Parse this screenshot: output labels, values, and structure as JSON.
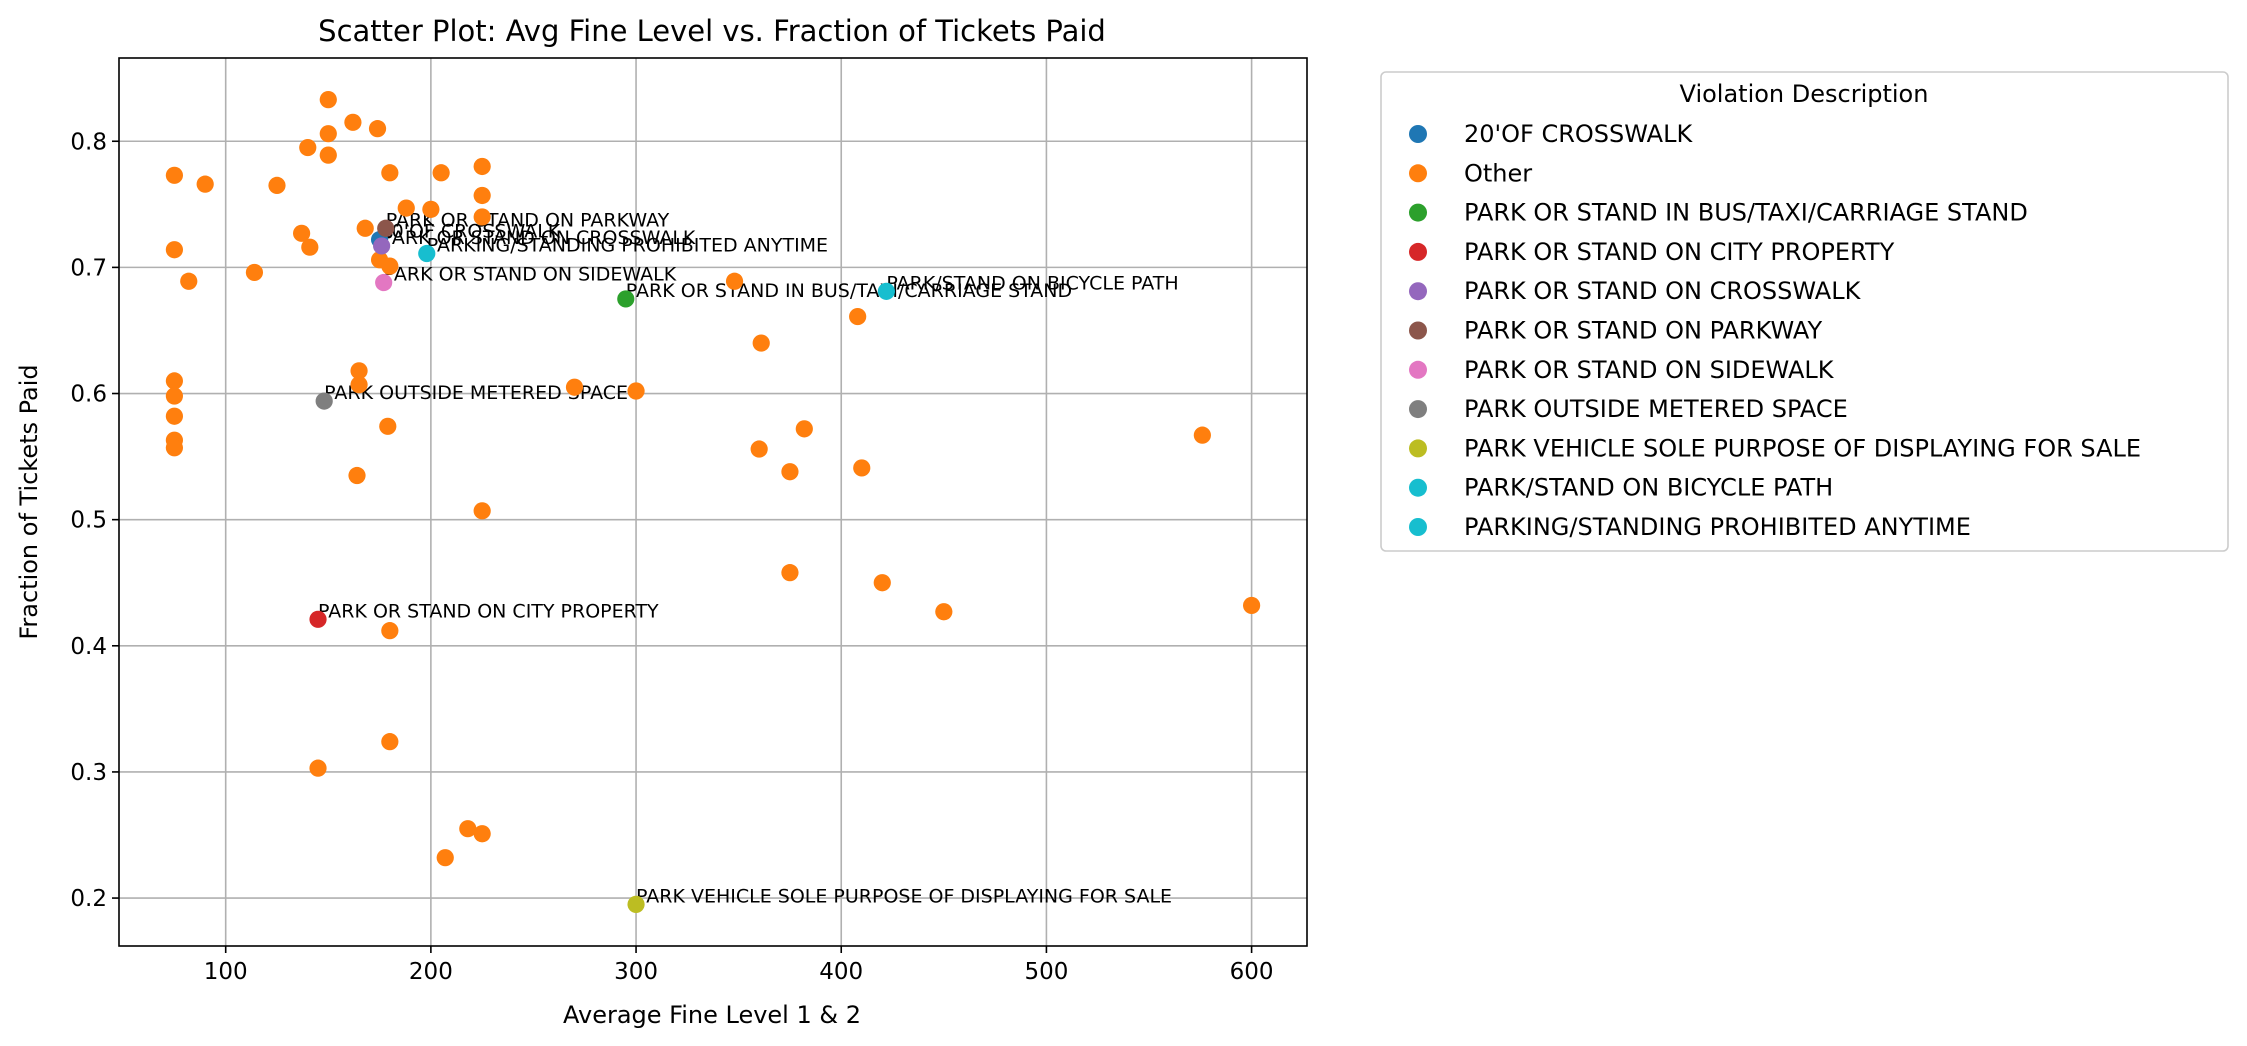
{
  "chart_data": {
    "type": "scatter",
    "title": "Scatter Plot: Avg Fine Level vs. Fraction of Tickets Paid",
    "xlabel": "Average Fine Level 1 & 2",
    "ylabel": "Fraction of Tickets Paid",
    "xlim": [
      48,
      627
    ],
    "ylim": [
      0.162,
      0.866
    ],
    "xticks": [
      100,
      200,
      300,
      400,
      500,
      600
    ],
    "yticks": [
      0.2,
      0.3,
      0.4,
      0.5,
      0.6,
      0.7,
      0.8
    ],
    "xtick_labels": [
      "100",
      "200",
      "300",
      "400",
      "500",
      "600"
    ],
    "ytick_labels": [
      "0.2",
      "0.3",
      "0.4",
      "0.5",
      "0.6",
      "0.7",
      "0.8"
    ],
    "grid": true,
    "legend": {
      "title": "Violation Description",
      "placement": "outside-right"
    },
    "series": [
      {
        "name": "20'OF CROSSWALK",
        "color": "#1f77b4",
        "points": [
          {
            "x": 175,
            "y": 0.722,
            "label": "20'OF CROSSWALK"
          }
        ]
      },
      {
        "name": "Other",
        "color": "#ff7f0e",
        "points": [
          {
            "x": 150,
            "y": 0.833
          },
          {
            "x": 162,
            "y": 0.815
          },
          {
            "x": 174,
            "y": 0.81
          },
          {
            "x": 150,
            "y": 0.806
          },
          {
            "x": 140,
            "y": 0.795
          },
          {
            "x": 150,
            "y": 0.789
          },
          {
            "x": 225,
            "y": 0.78
          },
          {
            "x": 205,
            "y": 0.775
          },
          {
            "x": 180,
            "y": 0.775
          },
          {
            "x": 75,
            "y": 0.773
          },
          {
            "x": 90,
            "y": 0.766
          },
          {
            "x": 125,
            "y": 0.765
          },
          {
            "x": 225,
            "y": 0.757
          },
          {
            "x": 188,
            "y": 0.747
          },
          {
            "x": 200,
            "y": 0.746
          },
          {
            "x": 225,
            "y": 0.74
          },
          {
            "x": 168,
            "y": 0.731
          },
          {
            "x": 137,
            "y": 0.727
          },
          {
            "x": 141,
            "y": 0.716
          },
          {
            "x": 75,
            "y": 0.714
          },
          {
            "x": 175,
            "y": 0.706
          },
          {
            "x": 180,
            "y": 0.701
          },
          {
            "x": 114,
            "y": 0.696
          },
          {
            "x": 82,
            "y": 0.689
          },
          {
            "x": 348,
            "y": 0.689
          },
          {
            "x": 408,
            "y": 0.661
          },
          {
            "x": 361,
            "y": 0.64
          },
          {
            "x": 165,
            "y": 0.618
          },
          {
            "x": 75,
            "y": 0.61
          },
          {
            "x": 165,
            "y": 0.607
          },
          {
            "x": 270,
            "y": 0.605
          },
          {
            "x": 300,
            "y": 0.602
          },
          {
            "x": 75,
            "y": 0.598
          },
          {
            "x": 75,
            "y": 0.582
          },
          {
            "x": 179,
            "y": 0.574
          },
          {
            "x": 382,
            "y": 0.572
          },
          {
            "x": 576,
            "y": 0.567
          },
          {
            "x": 75,
            "y": 0.563
          },
          {
            "x": 75,
            "y": 0.557
          },
          {
            "x": 360,
            "y": 0.556
          },
          {
            "x": 410,
            "y": 0.541
          },
          {
            "x": 375,
            "y": 0.538
          },
          {
            "x": 164,
            "y": 0.535
          },
          {
            "x": 225,
            "y": 0.507
          },
          {
            "x": 375,
            "y": 0.458
          },
          {
            "x": 420,
            "y": 0.45
          },
          {
            "x": 600,
            "y": 0.432
          },
          {
            "x": 450,
            "y": 0.427
          },
          {
            "x": 180,
            "y": 0.412
          },
          {
            "x": 180,
            "y": 0.324
          },
          {
            "x": 145,
            "y": 0.303
          },
          {
            "x": 218,
            "y": 0.255
          },
          {
            "x": 225,
            "y": 0.251
          },
          {
            "x": 207,
            "y": 0.232
          }
        ]
      },
      {
        "name": "PARK OR STAND IN BUS/TAXI/CARRIAGE STAND",
        "color": "#2ca02c",
        "points": [
          {
            "x": 295,
            "y": 0.675,
            "label": "PARK OR STAND IN BUS/TAXI/CARRIAGE STAND"
          }
        ]
      },
      {
        "name": "PARK OR STAND ON CITY PROPERTY",
        "color": "#d62728",
        "points": [
          {
            "x": 145,
            "y": 0.421,
            "label": "PARK OR STAND ON CITY PROPERTY"
          }
        ]
      },
      {
        "name": "PARK OR STAND ON CROSSWALK",
        "color": "#9467bd",
        "points": [
          {
            "x": 176,
            "y": 0.717,
            "label": "PARK OR STAND ON CROSSWALK"
          }
        ]
      },
      {
        "name": "PARK OR STAND ON PARKWAY",
        "color": "#8c564b",
        "points": [
          {
            "x": 178,
            "y": 0.731,
            "label": "PARK OR STAND ON PARKWAY"
          }
        ]
      },
      {
        "name": "PARK OR STAND ON SIDEWALK",
        "color": "#e377c2",
        "points": [
          {
            "x": 177,
            "y": 0.688,
            "label": "PARK OR STAND ON SIDEWALK"
          }
        ]
      },
      {
        "name": "PARK OUTSIDE METERED SPACE",
        "color": "#7f7f7f",
        "points": [
          {
            "x": 148,
            "y": 0.594,
            "label": "PARK OUTSIDE METERED SPACE"
          }
        ]
      },
      {
        "name": "PARK VEHICLE SOLE PURPOSE OF DISPLAYING FOR SALE",
        "color": "#bcbd22",
        "points": [
          {
            "x": 300,
            "y": 0.195,
            "label": "PARK VEHICLE SOLE PURPOSE OF DISPLAYING FOR SALE"
          }
        ]
      },
      {
        "name": "PARK/STAND ON BICYCLE PATH",
        "color": "#17becf",
        "points": [
          {
            "x": 422,
            "y": 0.681,
            "label": "PARK/STAND ON BICYCLE PATH"
          }
        ]
      },
      {
        "name": "PARKING/STANDING PROHIBITED ANYTIME",
        "color": "#17becf",
        "points": [
          {
            "x": 198,
            "y": 0.711,
            "label": "PARKING/STANDING PROHIBITED ANYTIME"
          }
        ]
      }
    ]
  }
}
